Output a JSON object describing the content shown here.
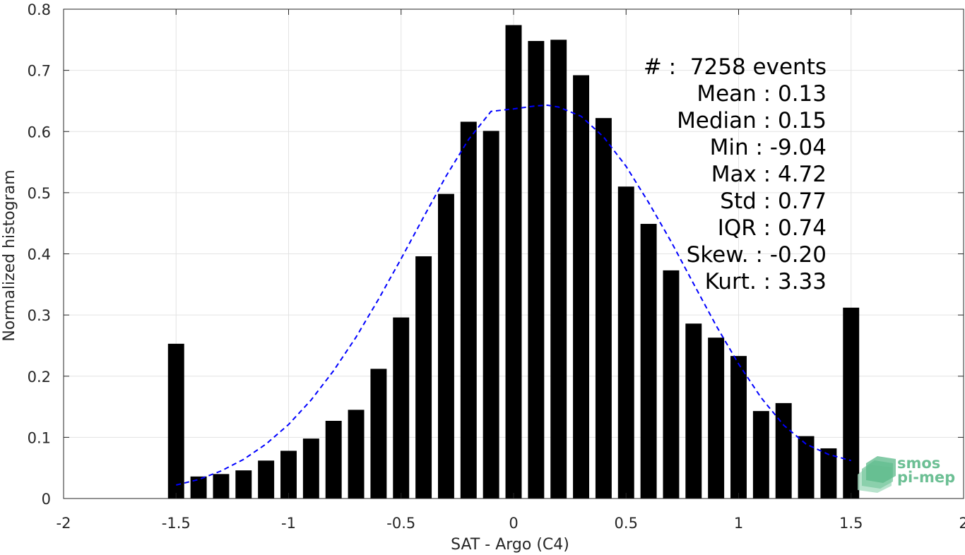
{
  "chart_data": {
    "type": "bar",
    "xlabel": "SAT - Argo (C4)",
    "ylabel": "Normalized histogram",
    "xlim": [
      -2,
      2
    ],
    "ylim": [
      0,
      0.8
    ],
    "xticks": [
      -2,
      -1.5,
      -1,
      -0.5,
      0,
      0.5,
      1,
      1.5,
      2
    ],
    "xtick_labels": [
      "-2",
      "-1.5",
      "-1",
      "-0.5",
      "0",
      "0.5",
      "1",
      "1.5",
      "2"
    ],
    "yticks": [
      0,
      0.1,
      0.2,
      0.3,
      0.4,
      0.5,
      0.6,
      0.7,
      0.8
    ],
    "ytick_labels": [
      "0",
      "0.1",
      "0.2",
      "0.3",
      "0.4",
      "0.5",
      "0.6",
      "0.7",
      "0.8"
    ],
    "grid": true,
    "bar_color": "#000000",
    "bars": {
      "x": [
        -1.5,
        -1.4,
        -1.3,
        -1.2,
        -1.1,
        -1.0,
        -0.9,
        -0.8,
        -0.7,
        -0.6,
        -0.5,
        -0.4,
        -0.3,
        -0.2,
        -0.1,
        0.0,
        0.1,
        0.2,
        0.3,
        0.4,
        0.5,
        0.6,
        0.7,
        0.8,
        0.9,
        1.0,
        1.1,
        1.2,
        1.3,
        1.4,
        1.5
      ],
      "values": [
        0.253,
        0.036,
        0.04,
        0.046,
        0.062,
        0.078,
        0.098,
        0.127,
        0.145,
        0.212,
        0.296,
        0.396,
        0.498,
        0.616,
        0.601,
        0.774,
        0.748,
        0.75,
        0.692,
        0.622,
        0.51,
        0.449,
        0.373,
        0.286,
        0.263,
        0.233,
        0.143,
        0.156,
        0.102,
        0.082,
        0.312
      ]
    },
    "fit_curve": {
      "style": "dashed",
      "color": "#0000ff",
      "x": [
        -1.5,
        -1.4,
        -1.3,
        -1.2,
        -1.1,
        -1.0,
        -0.9,
        -0.8,
        -0.7,
        -0.6,
        -0.5,
        -0.4,
        -0.3,
        -0.2,
        -0.1,
        0.0,
        0.1,
        0.15,
        0.2,
        0.3,
        0.4,
        0.5,
        0.6,
        0.7,
        0.8,
        0.9,
        1.0,
        1.1,
        1.2,
        1.3,
        1.4,
        1.5
      ],
      "values": [
        0.022,
        0.031,
        0.045,
        0.064,
        0.089,
        0.121,
        0.161,
        0.209,
        0.264,
        0.326,
        0.392,
        0.46,
        0.527,
        0.587,
        0.633,
        0.637,
        0.642,
        0.643,
        0.64,
        0.625,
        0.591,
        0.543,
        0.484,
        0.42,
        0.351,
        0.283,
        0.22,
        0.165,
        0.12,
        0.089,
        0.072,
        0.062
      ]
    },
    "stats": [
      {
        "label": "#",
        "value": ":  7258 events"
      },
      {
        "label": "Mean",
        "value": ": 0.13"
      },
      {
        "label": "Median",
        "value": ": 0.15"
      },
      {
        "label": "Min",
        "value": ": -9.04"
      },
      {
        "label": "Max",
        "value": ": 4.72"
      },
      {
        "label": "Std",
        "value": ": 0.77"
      },
      {
        "label": "IQR",
        "value": ": 0.74"
      },
      {
        "label": "Skew.",
        "value": ": -0.20"
      },
      {
        "label": "Kurt.",
        "value": ": 3.33"
      }
    ]
  },
  "logo": {
    "line1": "smos",
    "line2": "pi-mep",
    "color": "#6cbf94"
  }
}
